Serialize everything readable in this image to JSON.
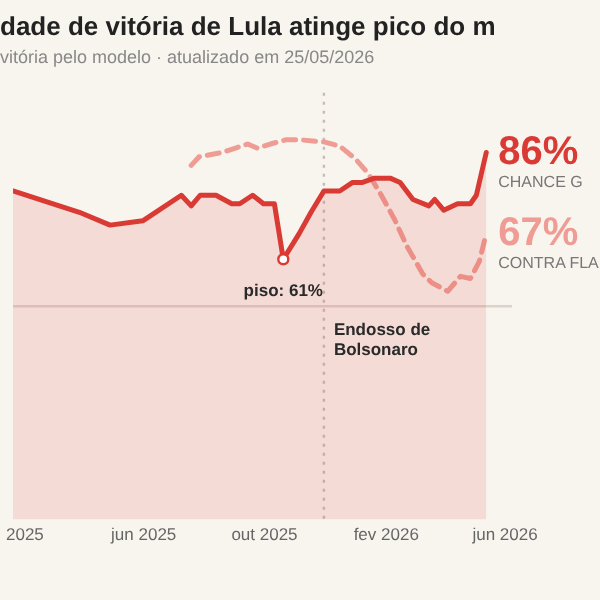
{
  "chart_data": {
    "type": "line",
    "title": "dade de vitória de Lula atinge pico do m",
    "subtitle": "vitória pelo modelo · atualizado em 25/05/2026",
    "series": [
      {
        "name": "CHANCE G",
        "type": "area",
        "color": "#d93a34",
        "line_style": "solid",
        "x": [
          "2025-01-20",
          "2025-03-28",
          "2025-04-28",
          "2025-05-31",
          "2025-06-13",
          "2025-07-09",
          "2025-07-19",
          "2025-07-28",
          "2025-08-13",
          "2025-08-29",
          "2025-09-06",
          "2025-09-19",
          "2025-09-30",
          "2025-10-11",
          "2025-10-20",
          "2025-11-05",
          "2025-11-17",
          "2025-11-30",
          "2025-12-16",
          "2025-12-29",
          "2026-01-08",
          "2026-01-20",
          "2026-02-05",
          "2026-02-15",
          "2026-02-28",
          "2026-03-16",
          "2026-03-22",
          "2026-03-31",
          "2026-04-14",
          "2026-04-27",
          "2026-05-03",
          "2026-05-13"
        ],
        "values": [
          77,
          72,
          69,
          70,
          72,
          76,
          73.5,
          76,
          76,
          74,
          74,
          76,
          74,
          74,
          61,
          67,
          72,
          77,
          77,
          79,
          79,
          80,
          80,
          79,
          75,
          73.5,
          75,
          72.5,
          74,
          74,
          76,
          86
        ],
        "value_labels": [
          null,
          null,
          null,
          null,
          null,
          null,
          null,
          null,
          null,
          null,
          null,
          null,
          null,
          null,
          null,
          null,
          null,
          null,
          null,
          null,
          null,
          null,
          null,
          null,
          null,
          null,
          null,
          null,
          null,
          null,
          null,
          "86%"
        ]
      },
      {
        "name": "CONTRA FLA",
        "color": "#ee9c94",
        "line_style": "dashed",
        "x": [
          "2025-07-19",
          "2025-07-27",
          "2025-08-19",
          "2025-09-01",
          "2025-09-14",
          "2025-09-24",
          "2025-10-07",
          "2025-10-23",
          "2025-11-05",
          "2025-11-30",
          "2025-12-16",
          "2026-01-01",
          "2026-01-14",
          "2026-01-27",
          "2026-02-09",
          "2026-02-22",
          "2026-03-10",
          "2026-03-19",
          "2026-04-04",
          "2026-04-17",
          "2026-04-27",
          "2026-05-06",
          "2026-05-13"
        ],
        "values": [
          83,
          85,
          86,
          87,
          88,
          87,
          88,
          89,
          89,
          88.5,
          87.5,
          84.5,
          81,
          76,
          70.5,
          64,
          57.5,
          55.5,
          53.5,
          57,
          56.5,
          60.5,
          67
        ],
        "value_labels": [
          null,
          null,
          null,
          null,
          null,
          null,
          null,
          null,
          null,
          null,
          null,
          null,
          null,
          null,
          null,
          null,
          null,
          null,
          null,
          null,
          null,
          null,
          "67%"
        ]
      }
    ],
    "xlim": [
      "2025-01-20",
      "2026-06-08"
    ],
    "xticks": [
      {
        "value": "2025-02-01",
        "label": "2025"
      },
      {
        "value": "2025-06-01",
        "label": "jun 2025"
      },
      {
        "value": "2025-10-01",
        "label": "out 2025"
      },
      {
        "value": "2026-02-01",
        "label": "fev 2026"
      },
      {
        "value": "2026-06-01",
        "label": "jun 2026"
      }
    ],
    "ylim": [
      0,
      100
    ],
    "tick_labels": "x",
    "grid": false,
    "legend": false,
    "marker": "none",
    "ref_lines": [
      {
        "axis": "y",
        "value": 50,
        "color": "#ddd3ca",
        "line_style": "solid"
      },
      {
        "axis": "x",
        "value": "2025-11-30",
        "label": "Endosso de Bolsonaro",
        "color": "#c9bcb4",
        "line_style": "dotted"
      }
    ],
    "annotations": [
      {
        "text": "piso: 61%",
        "x": "2025-10-20",
        "y": 61
      }
    ]
  }
}
